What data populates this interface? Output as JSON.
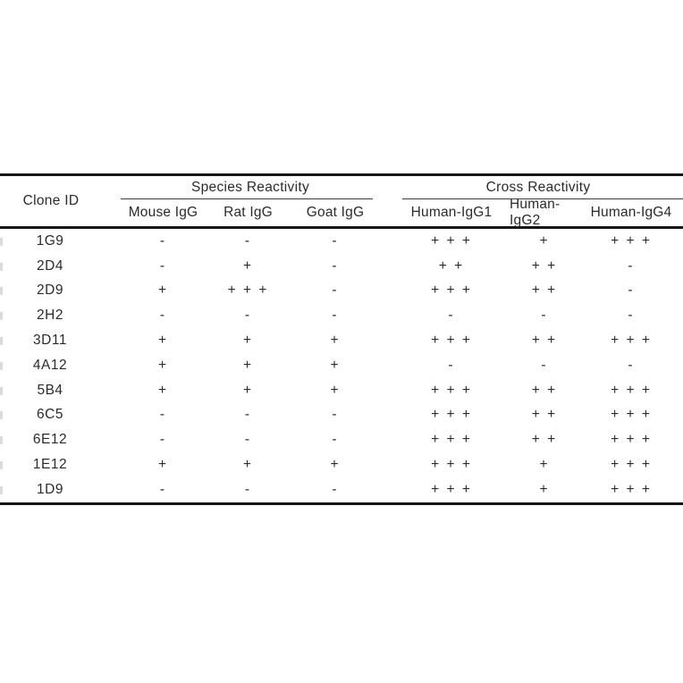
{
  "chart_data": {
    "type": "table",
    "row_header": "Clone ID",
    "column_groups": [
      {
        "label": "Species Reactivity",
        "span": [
          "Mouse IgG",
          "Rat IgG",
          "Goat IgG"
        ]
      },
      {
        "label": "Cross Reactivity",
        "span": [
          "Human-IgG1",
          "Human-IgG2",
          "Human-IgG4"
        ]
      }
    ],
    "columns": [
      "Clone ID",
      "Mouse IgG",
      "Rat IgG",
      "Goat IgG",
      "Human-IgG1",
      "Human-IgG2",
      "Human-IgG4"
    ],
    "rows": [
      {
        "clone": "1G9",
        "values": [
          "-",
          "-",
          "-",
          "+ + +",
          "+",
          "+ + +"
        ]
      },
      {
        "clone": "2D4",
        "values": [
          "-",
          "+",
          "-",
          "+ +",
          "+ +",
          "-"
        ]
      },
      {
        "clone": "2D9",
        "values": [
          "+",
          "+ + +",
          "-",
          "+ + +",
          "+ +",
          "-"
        ]
      },
      {
        "clone": "2H2",
        "values": [
          "-",
          "-",
          "-",
          "-",
          "-",
          "-"
        ]
      },
      {
        "clone": "3D11",
        "values": [
          "+",
          "+",
          "+",
          "+ + +",
          "+ +",
          "+ + +"
        ]
      },
      {
        "clone": "4A12",
        "values": [
          "+",
          "+",
          "+",
          "-",
          "-",
          "-"
        ]
      },
      {
        "clone": "5B4",
        "values": [
          "+",
          "+",
          "+",
          "+ + +",
          "+ +",
          "+ + +"
        ]
      },
      {
        "clone": "6C5",
        "values": [
          "-",
          "-",
          "-",
          "+ + +",
          "+ +",
          "+ + +"
        ]
      },
      {
        "clone": "6E12",
        "values": [
          "-",
          "-",
          "-",
          "+ + +",
          "+ +",
          "+ + +"
        ]
      },
      {
        "clone": "1E12",
        "values": [
          "+",
          "+",
          "+",
          "+ + +",
          "+",
          "+ + +"
        ]
      },
      {
        "clone": "1D9",
        "values": [
          "-",
          "-",
          "-",
          "+ + +",
          "+",
          "+ + +"
        ]
      }
    ],
    "layout": {
      "legend": "none",
      "grid": "horizontal rules only"
    }
  },
  "colors": {
    "background": "#ffffff",
    "text": "#2b2b2b",
    "border": "#161616",
    "group_underline": "#3d3d3d"
  }
}
